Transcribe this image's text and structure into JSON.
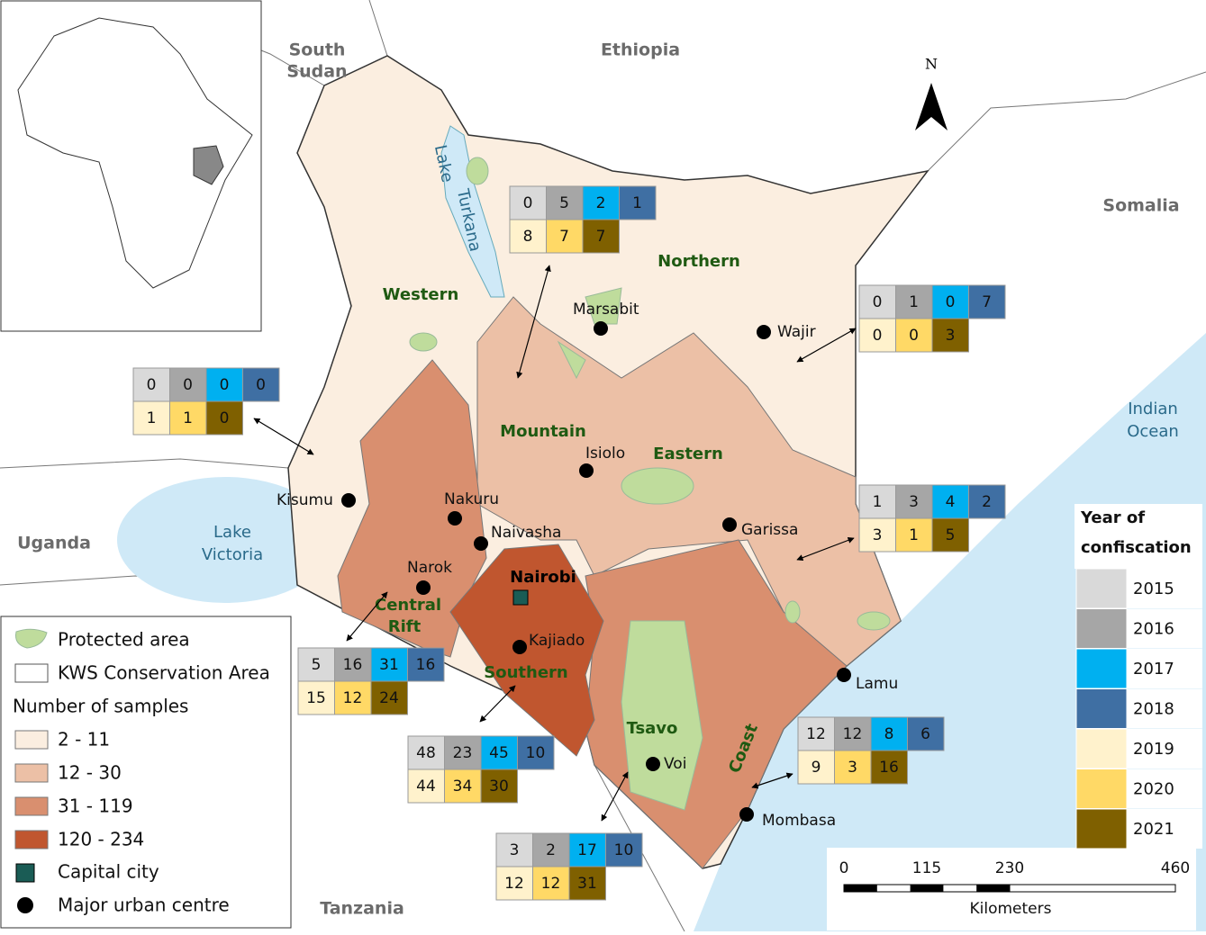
{
  "north_arrow": "N",
  "countries": {
    "south_sudan": [
      "South",
      "Sudan"
    ],
    "ethiopia": "Ethiopia",
    "somalia": "Somalia",
    "uganda": "Uganda",
    "tanzania": "Tanzania"
  },
  "water": {
    "lake_turkana": [
      "Lake",
      "Turkana"
    ],
    "lake_victoria": [
      "Lake",
      "Victoria"
    ],
    "indian_ocean": [
      "Indian",
      "Ocean"
    ]
  },
  "regions": {
    "western": "Western",
    "northern": "Northern",
    "mountain": "Mountain",
    "eastern": "Eastern",
    "central_rift": [
      "Central",
      "Rift"
    ],
    "nairobi": "Nairobi",
    "southern": "Southern",
    "tsavo": "Tsavo",
    "coast": "Coast"
  },
  "towns": {
    "marsabit": "Marsabit",
    "wajir": "Wajir",
    "isiolo": "Isiolo",
    "kisumu": "Kisumu",
    "nakuru": "Nakuru",
    "naivasha": "Naivasha",
    "garissa": "Garissa",
    "narok": "Narok",
    "kajiado": "Kajiado",
    "lamu": "Lamu",
    "voi": "Voi",
    "mombasa": "Mombasa"
  },
  "legend": {
    "protected": "Protected area",
    "kws": "KWS Conservation Area",
    "samples_title": "Number of samples",
    "classes": [
      "2 - 11",
      "12 - 30",
      "31 - 119",
      "120 - 234"
    ],
    "capital": "Capital city",
    "urban": "Major urban centre"
  },
  "years": {
    "title": [
      "Year of",
      "confiscation"
    ],
    "items": [
      2015,
      2016,
      2017,
      2018,
      2019,
      2020,
      2021
    ]
  },
  "scale": {
    "ticks": [
      0,
      115,
      230,
      460
    ],
    "unit": "Kilometers"
  },
  "boxes": [
    [
      0,
      5,
      2,
      1,
      8,
      7,
      7
    ],
    [
      0,
      1,
      0,
      7,
      0,
      0,
      3
    ],
    [
      0,
      0,
      0,
      0,
      1,
      1,
      0
    ],
    [
      1,
      3,
      4,
      2,
      3,
      1,
      5
    ],
    [
      5,
      16,
      31,
      16,
      15,
      12,
      24
    ],
    [
      48,
      23,
      45,
      10,
      44,
      34,
      30
    ],
    [
      3,
      2,
      17,
      10,
      12,
      12,
      31
    ],
    [
      12,
      12,
      8,
      6,
      9,
      3,
      16
    ]
  ]
}
